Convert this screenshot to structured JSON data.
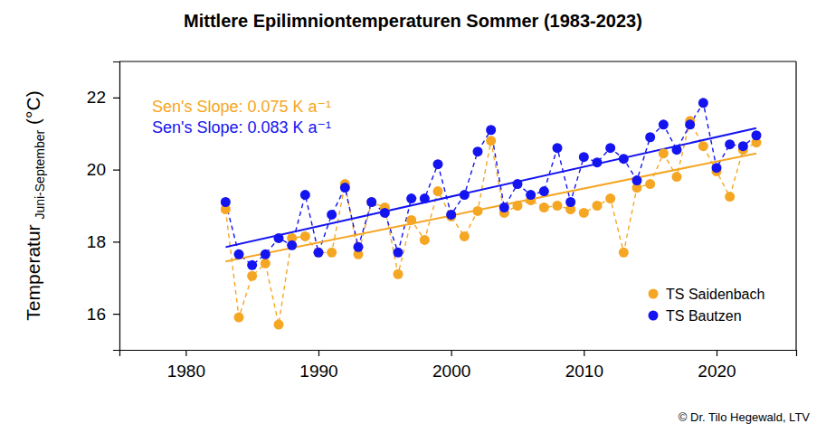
{
  "chart_data": {
    "type": "line",
    "title": "Mittlere Epilimniontemperaturen Sommer (1983-2023)",
    "ylabel": "Temperatur",
    "ylabel_subscript": "Juni-September",
    "ylabel_unit": "(°C)",
    "credit": "© Dr. Tilo Hegewald, LTV",
    "x": [
      1983,
      1984,
      1985,
      1986,
      1987,
      1988,
      1989,
      1990,
      1991,
      1992,
      1993,
      1994,
      1995,
      1996,
      1997,
      1998,
      1999,
      2000,
      2001,
      2002,
      2003,
      2004,
      2005,
      2006,
      2007,
      2008,
      2009,
      2010,
      2011,
      2012,
      2013,
      2014,
      2015,
      2016,
      2017,
      2018,
      2019,
      2020,
      2021,
      2022,
      2023
    ],
    "xlim": [
      1975,
      2026
    ],
    "xticks": [
      1980,
      1990,
      2000,
      2010,
      2020
    ],
    "ylim": [
      15,
      23
    ],
    "yticks": [
      16,
      18,
      20,
      22
    ],
    "trend_x": [
      1983,
      2023
    ],
    "legend": "lower right",
    "series": [
      {
        "name": "TS Saidenbach",
        "color": "#f5a623",
        "marker": "circle",
        "line_style": "dashed",
        "values": [
          18.9,
          15.9,
          17.05,
          17.4,
          15.7,
          18.1,
          18.15,
          17.7,
          17.7,
          19.6,
          17.65,
          19.1,
          18.95,
          17.1,
          18.6,
          18.05,
          19.4,
          18.7,
          18.15,
          18.85,
          20.8,
          18.8,
          19.0,
          19.15,
          18.95,
          19.0,
          18.9,
          18.8,
          19.0,
          19.2,
          17.7,
          19.5,
          19.6,
          20.45,
          19.8,
          21.35,
          20.65,
          19.95,
          19.25,
          20.55,
          20.75
        ],
        "trend": [
          17.45,
          20.45
        ]
      },
      {
        "name": "TS Bautzen",
        "color": "#1414f0",
        "marker": "circle",
        "line_style": "dashed",
        "values": [
          19.1,
          17.65,
          17.35,
          17.65,
          18.1,
          17.9,
          19.3,
          17.7,
          18.75,
          19.5,
          17.85,
          19.1,
          18.8,
          17.7,
          19.2,
          19.2,
          20.15,
          18.75,
          19.3,
          20.5,
          21.1,
          18.95,
          19.6,
          19.3,
          19.4,
          20.6,
          19.1,
          20.35,
          20.2,
          20.6,
          20.3,
          19.7,
          20.9,
          21.25,
          20.55,
          21.25,
          21.85,
          20.05,
          20.7,
          20.65,
          20.95
        ],
        "trend": [
          17.85,
          21.15
        ]
      }
    ],
    "annotations": [
      {
        "text": "Sen's Slope:  0.075  K a⁻¹",
        "color": "#f5a623"
      },
      {
        "text": "Sen's Slope:  0.083  K a⁻¹",
        "color": "#1414f0"
      }
    ]
  }
}
